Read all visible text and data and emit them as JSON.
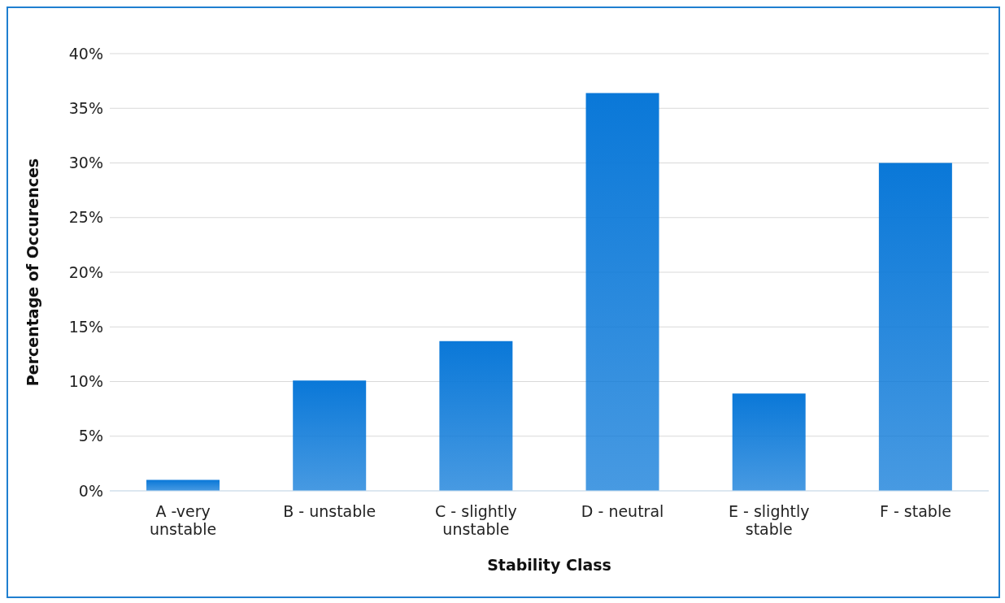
{
  "chart_data": {
    "type": "bar",
    "xlabel": "Stability Class",
    "ylabel": "Percentage of Occurences",
    "categories": [
      "A -very unstable",
      "B - unstable",
      "C - slightly unstable",
      "D - neutral",
      "E - slightly stable",
      "F - stable"
    ],
    "values": [
      1.0,
      10.1,
      13.7,
      36.4,
      8.9,
      30.0
    ],
    "color": "#0a78d8",
    "ylim": [
      0,
      40
    ],
    "yticks": [
      {
        "value": 0,
        "label": "0%"
      },
      {
        "value": 5,
        "label": "5%"
      },
      {
        "value": 10,
        "label": "10%"
      },
      {
        "value": 15,
        "label": "15%"
      },
      {
        "value": 20,
        "label": "20%"
      },
      {
        "value": 25,
        "label": "25%"
      },
      {
        "value": 30,
        "label": "30%"
      },
      {
        "value": 35,
        "label": "35%"
      },
      {
        "value": 40,
        "label": "40%"
      }
    ],
    "grid": "y"
  }
}
